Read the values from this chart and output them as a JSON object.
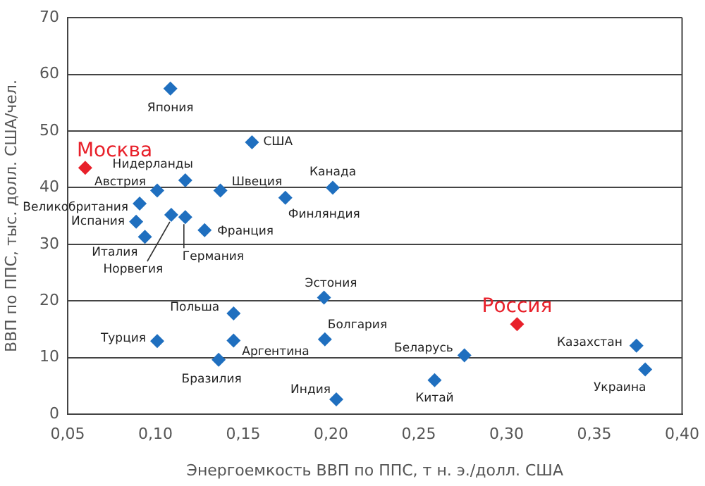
{
  "chart_data": {
    "type": "scatter",
    "xlabel": "Энергоемкость ВВП по ППС, т н. э./долл. США",
    "ylabel": "ВВП по ППС, тыс. долл. США/чел.",
    "x": [
      0.1085,
      0.06,
      0.155,
      0.117,
      0.101,
      0.137,
      0.201,
      0.174,
      0.091,
      0.089,
      0.094,
      0.109,
      0.117,
      0.128,
      0.196,
      0.1445,
      0.101,
      0.1445,
      0.136,
      0.1965,
      0.203,
      0.259,
      0.276,
      0.306,
      0.374,
      0.379
    ],
    "values": [
      57.5,
      43.5,
      48,
      41.3,
      39.5,
      39.5,
      40,
      38.2,
      37.2,
      34,
      31.3,
      35.2,
      34.8,
      32.5,
      20.6,
      17.8,
      12.9,
      13,
      9.6,
      13.2,
      2.6,
      6,
      10.4,
      15.9,
      12.1,
      7.9
    ],
    "colors": [
      "#1f6fbf",
      "#e8202a",
      "#1f6fbf",
      "#1f6fbf",
      "#1f6fbf",
      "#1f6fbf",
      "#1f6fbf",
      "#1f6fbf",
      "#1f6fbf",
      "#1f6fbf",
      "#1f6fbf",
      "#1f6fbf",
      "#1f6fbf",
      "#1f6fbf",
      "#1f6fbf",
      "#1f6fbf",
      "#1f6fbf",
      "#1f6fbf",
      "#1f6fbf",
      "#1f6fbf",
      "#1f6fbf",
      "#1f6fbf",
      "#1f6fbf",
      "#e8202a",
      "#1f6fbf",
      "#1f6fbf"
    ],
    "annotations": [
      {
        "text": "Япония",
        "x": 0.1085,
        "y": 57.5
      },
      {
        "text": "Москва",
        "x": 0.06,
        "y": 43.5
      },
      {
        "text": "США",
        "x": 0.155,
        "y": 48
      },
      {
        "text": "Нидерланды",
        "x": 0.117,
        "y": 41.3
      },
      {
        "text": "Австрия",
        "x": 0.101,
        "y": 39.5
      },
      {
        "text": "Швеция",
        "x": 0.137,
        "y": 39.5
      },
      {
        "text": "Канада",
        "x": 0.201,
        "y": 40
      },
      {
        "text": "Финляндия",
        "x": 0.174,
        "y": 38.2
      },
      {
        "text": "Великобритания",
        "x": 0.091,
        "y": 37.2
      },
      {
        "text": "Испания",
        "x": 0.089,
        "y": 34
      },
      {
        "text": "Италия",
        "x": 0.094,
        "y": 31.3
      },
      {
        "text": "Норвегия",
        "x": 0.109,
        "y": 35.2
      },
      {
        "text": "Германия",
        "x": 0.117,
        "y": 34.8
      },
      {
        "text": "Франция",
        "x": 0.128,
        "y": 32.5
      },
      {
        "text": "Эстония",
        "x": 0.196,
        "y": 20.6
      },
      {
        "text": "Польша",
        "x": 0.1445,
        "y": 17.8
      },
      {
        "text": "Турция",
        "x": 0.101,
        "y": 12.9
      },
      {
        "text": "Аргентина",
        "x": 0.1445,
        "y": 13
      },
      {
        "text": "Бразилия",
        "x": 0.136,
        "y": 9.6
      },
      {
        "text": "Болгария",
        "x": 0.1965,
        "y": 13.2
      },
      {
        "text": "Индия",
        "x": 0.203,
        "y": 2.6
      },
      {
        "text": "Китай",
        "x": 0.259,
        "y": 6
      },
      {
        "text": "Беларусь",
        "x": 0.276,
        "y": 10.4
      },
      {
        "text": "Россия",
        "x": 0.306,
        "y": 15.9
      },
      {
        "text": "Казахстан",
        "x": 0.374,
        "y": 12.1
      },
      {
        "text": "Украина",
        "x": 0.379,
        "y": 7.9
      }
    ],
    "xlim": [
      0.05,
      0.4
    ],
    "xticks": [
      {
        "value": 0.05,
        "label": "0,05"
      },
      {
        "value": 0.1,
        "label": "0,10"
      },
      {
        "value": 0.15,
        "label": "0,15"
      },
      {
        "value": 0.2,
        "label": "0,20"
      },
      {
        "value": 0.25,
        "label": "0,25"
      },
      {
        "value": 0.3,
        "label": "0,30"
      },
      {
        "value": 0.35,
        "label": "0,35"
      },
      {
        "value": 0.4,
        "label": "0,40"
      }
    ],
    "ylim": [
      0,
      70
    ],
    "yticks": [
      0,
      10,
      20,
      30,
      40,
      50,
      60,
      70
    ],
    "grid": "y",
    "legend": false,
    "marker": "diamond"
  }
}
